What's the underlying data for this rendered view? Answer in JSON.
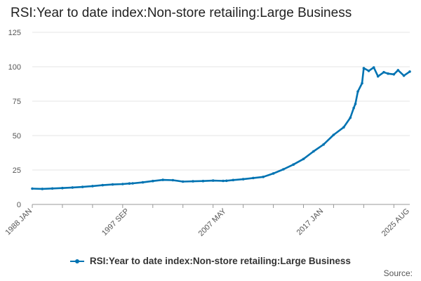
{
  "title": "RSI:Year to date index:Non-store retailing:Large Business",
  "source": "Source:",
  "chart_data": {
    "type": "line",
    "title": "RSI:Year to date index:Non-store retailing:Large Business",
    "x_start": "1988 JAN",
    "x_end": "2025 AUG",
    "ylim": [
      0,
      125
    ],
    "y_ticks": [
      0,
      25,
      50,
      75,
      100,
      125
    ],
    "x_tick_labels": [
      "1988 JAN",
      "1997 SEP",
      "2007 MAY",
      "2017 JAN",
      "2025 AUG"
    ],
    "grid": true,
    "legend_position": "bottom",
    "series": [
      {
        "name": "RSI:Year to date index:Non-store retailing:Large Business",
        "color": "#0073b2",
        "points": [
          [
            "1988 JAN",
            11.5
          ],
          [
            "1989 JAN",
            11.3
          ],
          [
            "1990 JAN",
            11.6
          ],
          [
            "1991 JAN",
            11.9
          ],
          [
            "1992 JAN",
            12.3
          ],
          [
            "1993 JAN",
            12.7
          ],
          [
            "1994 JAN",
            13.3
          ],
          [
            "1995 JAN",
            14.0
          ],
          [
            "1996 JAN",
            14.5
          ],
          [
            "1997 JAN",
            14.8
          ],
          [
            "1997 SEP",
            15.2
          ],
          [
            "1998 JAN",
            15.3
          ],
          [
            "1999 JAN",
            16.0
          ],
          [
            "2000 JAN",
            17.0
          ],
          [
            "2001 JAN",
            17.8
          ],
          [
            "2002 JAN",
            17.6
          ],
          [
            "2003 JAN",
            16.6
          ],
          [
            "2004 JAN",
            16.8
          ],
          [
            "2005 JAN",
            17.0
          ],
          [
            "2006 JAN",
            17.3
          ],
          [
            "2007 JAN",
            17.1
          ],
          [
            "2007 MAY",
            17.2
          ],
          [
            "2008 JAN",
            17.7
          ],
          [
            "2009 JAN",
            18.3
          ],
          [
            "2010 JAN",
            19.2
          ],
          [
            "2011 JAN",
            20.0
          ],
          [
            "2012 JAN",
            22.5
          ],
          [
            "2013 JAN",
            25.5
          ],
          [
            "2014 JAN",
            29.0
          ],
          [
            "2015 JAN",
            33.0
          ],
          [
            "2016 JAN",
            38.5
          ],
          [
            "2017 JAN",
            43.5
          ],
          [
            "2018 JAN",
            50.5
          ],
          [
            "2019 JAN",
            56.0
          ],
          [
            "2019 SEP",
            63.0
          ],
          [
            "2020 JAN",
            70.0
          ],
          [
            "2020 MAR",
            73.0
          ],
          [
            "2020 JUN",
            82.0
          ],
          [
            "2020 NOV",
            88.0
          ],
          [
            "2021 JAN",
            99.0
          ],
          [
            "2021 JUL",
            97.0
          ],
          [
            "2022 JAN",
            99.5
          ],
          [
            "2022 JUN",
            93.0
          ],
          [
            "2023 JAN",
            96.0
          ],
          [
            "2023 JUN",
            95.0
          ],
          [
            "2024 JAN",
            94.5
          ],
          [
            "2024 JUN",
            97.5
          ],
          [
            "2025 JAN",
            93.5
          ],
          [
            "2025 AUG",
            96.5
          ]
        ]
      }
    ]
  }
}
